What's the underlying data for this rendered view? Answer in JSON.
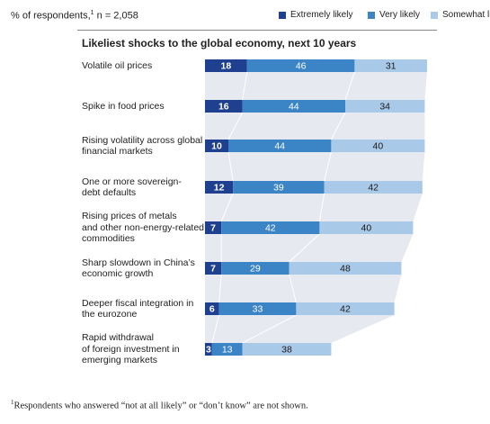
{
  "meta": {
    "respondents_label": "% of respondents,",
    "respondents_marker": "1",
    "sample": "n = 2,058"
  },
  "legend": [
    {
      "label": "Extremely likely",
      "color": "#1f3f8f"
    },
    {
      "label": "Very likely",
      "color": "#3b84c6"
    },
    {
      "label": "Somewhat likely",
      "color": "#a9c9e8"
    }
  ],
  "footnote": {
    "marker": "1",
    "text": "Respondents who answered “not at all likely” or “don’t know” are not shown."
  },
  "chart_data": {
    "type": "bar",
    "orientation": "horizontal",
    "stacked": true,
    "title": "Likeliest shocks to the global economy, next 10 years",
    "unit": "% of respondents",
    "categories": [
      "Volatile oil prices",
      "Spike in food prices",
      "Rising volatility across global financial markets",
      "One or more sovereign-debt defaults",
      "Rising prices of metals and other non-energy-related commodities",
      "Sharp slowdown in China’s economic growth",
      "Deeper fiscal integration in the eurozone",
      "Rapid withdrawal of foreign investment in emerging markets"
    ],
    "category_lines": [
      [
        "Volatile oil prices"
      ],
      [
        "Spike in food prices"
      ],
      [
        "Rising volatility across global",
        "financial markets"
      ],
      [
        "One or more sovereign-",
        "debt defaults"
      ],
      [
        "Rising prices of metals",
        "and other non-energy-related",
        "commodities"
      ],
      [
        "Sharp slowdown in China’s",
        "economic growth"
      ],
      [
        "Deeper fiscal integration in",
        "the eurozone"
      ],
      [
        "Rapid withdrawal",
        "of foreign investment in",
        "emerging markets"
      ]
    ],
    "series": [
      {
        "name": "Extremely likely",
        "values": [
          18,
          16,
          10,
          12,
          7,
          7,
          6,
          3
        ]
      },
      {
        "name": "Very likely",
        "values": [
          46,
          44,
          44,
          39,
          42,
          29,
          33,
          13
        ]
      },
      {
        "name": "Somewhat likely",
        "values": [
          31,
          34,
          40,
          42,
          40,
          48,
          42,
          38
        ]
      }
    ],
    "xlim": [
      0,
      100
    ],
    "legend_position": "top-right",
    "grid": false
  }
}
